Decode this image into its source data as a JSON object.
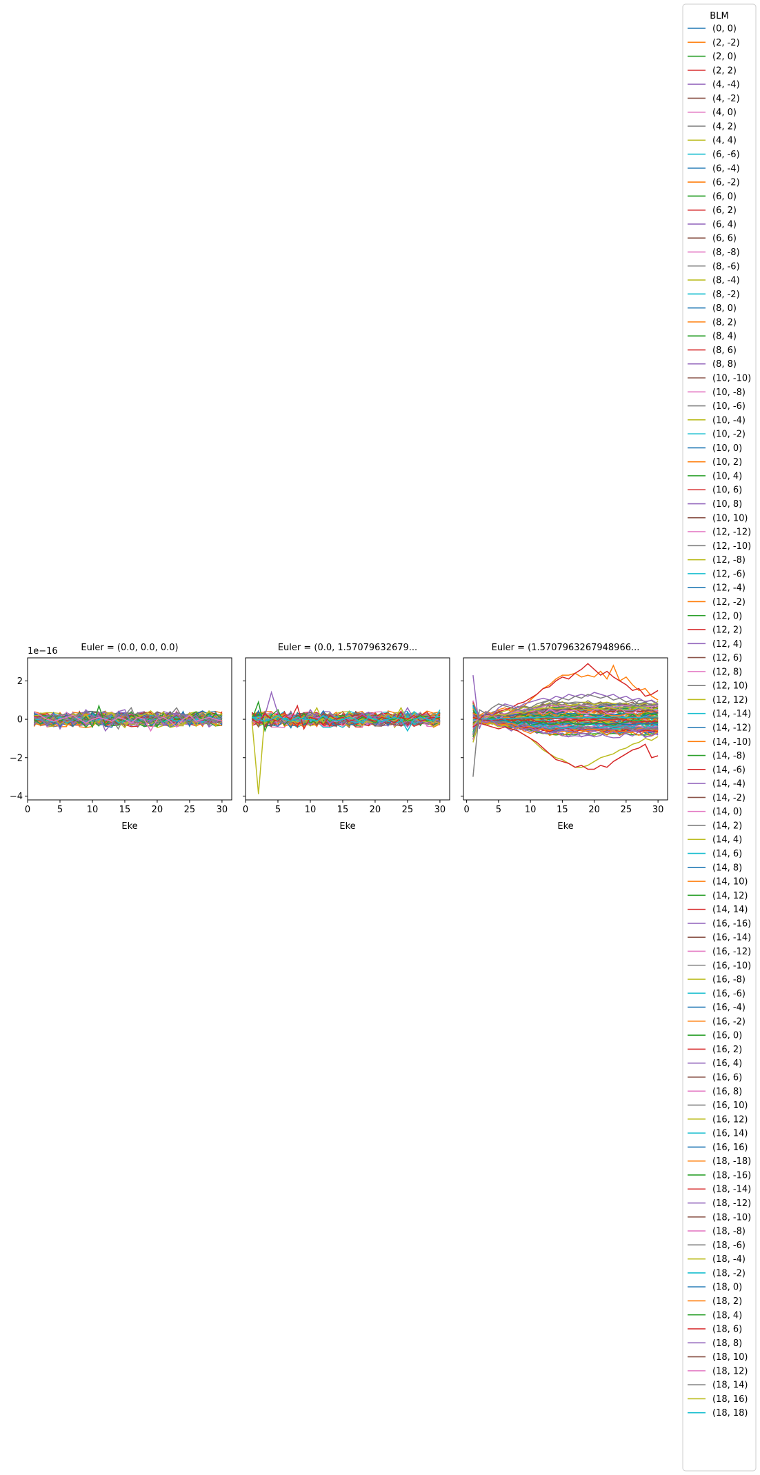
{
  "figure": {
    "legend_title": "BLM",
    "offset_text": "1e−16"
  },
  "colors": [
    "#1f77b4",
    "#ff7f0e",
    "#2ca02c",
    "#d62728",
    "#9467bd",
    "#8c564b",
    "#e377c2",
    "#7f7f7f",
    "#bcbd22",
    "#17becf"
  ],
  "legend": {
    "entries": [
      "(0, 0)",
      "(2, -2)",
      "(2, 0)",
      "(2, 2)",
      "(4, -4)",
      "(4, -2)",
      "(4, 0)",
      "(4, 2)",
      "(4, 4)",
      "(6, -6)",
      "(6, -4)",
      "(6, -2)",
      "(6, 0)",
      "(6, 2)",
      "(6, 4)",
      "(6, 6)",
      "(8, -8)",
      "(8, -6)",
      "(8, -4)",
      "(8, -2)",
      "(8, 0)",
      "(8, 2)",
      "(8, 4)",
      "(8, 6)",
      "(8, 8)",
      "(10, -10)",
      "(10, -8)",
      "(10, -6)",
      "(10, -4)",
      "(10, -2)",
      "(10, 0)",
      "(10, 2)",
      "(10, 4)",
      "(10, 6)",
      "(10, 8)",
      "(10, 10)",
      "(12, -12)",
      "(12, -10)",
      "(12, -8)",
      "(12, -6)",
      "(12, -4)",
      "(12, -2)",
      "(12, 0)",
      "(12, 2)",
      "(12, 4)",
      "(12, 6)",
      "(12, 8)",
      "(12, 10)",
      "(12, 12)",
      "(14, -14)",
      "(14, -12)",
      "(14, -10)",
      "(14, -8)",
      "(14, -6)",
      "(14, -4)",
      "(14, -2)",
      "(14, 0)",
      "(14, 2)",
      "(14, 4)",
      "(14, 6)",
      "(14, 8)",
      "(14, 10)",
      "(14, 12)",
      "(14, 14)",
      "(16, -16)",
      "(16, -14)",
      "(16, -12)",
      "(16, -10)",
      "(16, -8)",
      "(16, -6)",
      "(16, -4)",
      "(16, -2)",
      "(16, 0)",
      "(16, 2)",
      "(16, 4)",
      "(16, 6)",
      "(16, 8)",
      "(16, 10)",
      "(16, 12)",
      "(16, 14)",
      "(16, 16)",
      "(18, -18)",
      "(18, -16)",
      "(18, -14)",
      "(18, -12)",
      "(18, -10)",
      "(18, -8)",
      "(18, -6)",
      "(18, -4)",
      "(18, -2)",
      "(18, 0)",
      "(18, 2)",
      "(18, 4)",
      "(18, 6)",
      "(18, 8)",
      "(18, 10)",
      "(18, 12)",
      "(18, 14)",
      "(18, 16)",
      "(18, 18)"
    ]
  },
  "chart_data": [
    {
      "type": "line",
      "title": "Euler = (0.0, 0.0, 0.0)",
      "xlabel": "Eke",
      "ylabel": "",
      "xlim": [
        0,
        31.5
      ],
      "ylim": [
        -4.2,
        3.2
      ],
      "y_scale_label": "1e−16",
      "xticks": [
        0,
        5,
        10,
        15,
        20,
        25,
        30
      ],
      "yticks": [
        -4,
        -2,
        0,
        2
      ],
      "x": [
        1,
        2,
        3,
        4,
        5,
        6,
        7,
        8,
        9,
        10,
        11,
        12,
        13,
        14,
        15,
        16,
        17,
        18,
        19,
        20,
        21,
        22,
        23,
        24,
        25,
        26,
        27,
        28,
        29,
        30
      ],
      "highlights": [
        {
          "series": "(2, 0)",
          "values": [
            0.0,
            -0.25,
            0.05,
            0.2,
            -0.1,
            0.1,
            0.0,
            -0.2,
            0.15,
            -0.4,
            0.7,
            -0.3,
            0.1,
            0.0,
            -0.1,
            0.2,
            0.0,
            -0.2,
            0.1,
            0.0,
            -0.1,
            0.2,
            0.0,
            0.1,
            -0.2,
            0.2,
            0.0,
            -0.1,
            0.3,
            0.0
          ]
        },
        {
          "series": "(4, -4)",
          "values": [
            0.1,
            0.0,
            -0.3,
            0.2,
            -0.5,
            0.1,
            -0.2,
            0.0,
            0.5,
            0.1,
            0.2,
            -0.6,
            -0.2,
            0.4,
            0.5,
            -0.2,
            0.1,
            0.0,
            -0.1,
            0.2,
            -0.3,
            0.0,
            0.3,
            -0.1,
            0.0,
            0.2,
            -0.3,
            0.0,
            -0.2,
            0.1
          ]
        },
        {
          "series": "(12, -10)",
          "values": [
            0.0,
            0.1,
            -0.2,
            0.0,
            0.2,
            -0.1,
            0.0,
            0.3,
            -0.2,
            0.1,
            -0.3,
            0.2,
            0.0,
            -0.5,
            0.2,
            0.6,
            -0.2,
            0.0,
            0.1,
            -0.2,
            0.0,
            0.2,
            0.6,
            0.0,
            -0.2,
            0.1,
            0.3,
            -0.1,
            0.0,
            0.2
          ]
        },
        {
          "series": "(18, 12)",
          "values": [
            0.4,
            0.2,
            0.0,
            -0.1,
            0.0,
            0.1,
            0.2,
            0.0,
            -0.2,
            0.0,
            0.1,
            0.0,
            -0.1,
            0.1,
            0.0,
            -0.2,
            0.1,
            0.0,
            -0.6,
            0.0,
            0.1,
            -0.1,
            -0.4,
            0.0,
            0.2,
            -0.1,
            0.0,
            0.1,
            0.0,
            -0.1
          ]
        }
      ]
    },
    {
      "type": "line",
      "title": "Euler = (0.0, 1.57079632679...",
      "xlabel": "Eke",
      "ylabel": "",
      "xlim": [
        0,
        31.5
      ],
      "ylim": [
        -4.2,
        3.2
      ],
      "xticks": [
        0,
        5,
        10,
        15,
        20,
        25,
        30
      ],
      "yticks": [
        -4,
        -2,
        0,
        2
      ],
      "x": [
        1,
        2,
        3,
        4,
        5,
        6,
        7,
        8,
        9,
        10,
        11,
        12,
        13,
        14,
        15,
        16,
        17,
        18,
        19,
        20,
        21,
        22,
        23,
        24,
        25,
        26,
        27,
        28,
        29,
        30
      ],
      "highlights": [
        {
          "series": "(8, -4)",
          "values": [
            -0.1,
            -3.9,
            0.3,
            0.1,
            -0.1,
            0.2,
            0.0,
            0.1,
            -0.1,
            0.0,
            0.6,
            -0.2,
            0.1,
            0.0,
            0.0,
            0.2,
            -0.1,
            0.0,
            0.1,
            -0.1,
            0.0,
            0.3,
            0.0,
            0.6,
            -0.1,
            0.0,
            0.2,
            0.0,
            -0.2,
            0.1
          ]
        },
        {
          "series": "(2, 0)",
          "values": [
            0.0,
            0.9,
            -0.6,
            0.2,
            0.5,
            -0.3,
            0.1,
            0.0,
            0.3,
            -0.2,
            0.0,
            0.1,
            -0.1,
            0.0,
            0.2,
            0.0,
            -0.1,
            0.1,
            0.0,
            -0.2,
            0.1,
            0.0,
            0.0,
            0.1,
            -0.1,
            0.0,
            0.2,
            -0.1,
            0.0,
            0.1
          ]
        },
        {
          "series": "(4, -4)",
          "values": [
            0.1,
            0.0,
            0.2,
            1.4,
            0.3,
            -0.2,
            0.1,
            0.0,
            -0.1,
            0.5,
            0.0,
            0.2,
            -0.2,
            0.0,
            0.1,
            0.0,
            -0.1,
            0.3,
            0.0,
            0.1,
            -0.2,
            0.0,
            0.1,
            0.0,
            0.6,
            0.0,
            -0.2,
            0.1,
            0.0,
            -0.1
          ]
        },
        {
          "series": "(2, 2)",
          "values": [
            0.0,
            -0.2,
            0.3,
            0.0,
            -0.1,
            0.2,
            0.0,
            0.7,
            -0.5,
            0.1,
            0.0,
            -0.3,
            0.2,
            0.0,
            0.1,
            -0.1,
            0.0,
            0.2,
            0.0,
            -0.1,
            0.1,
            0.0,
            -0.2,
            0.1,
            0.0,
            0.2,
            -0.1,
            0.0,
            0.1,
            0.0
          ]
        },
        {
          "series": "(10, -2)",
          "values": [
            0.1,
            0.0,
            -0.1,
            0.0,
            0.2,
            0.0,
            -0.1,
            0.1,
            0.0,
            0.0,
            -0.1,
            0.2,
            0.0,
            -0.1,
            0.0,
            0.1,
            0.0,
            -0.2,
            0.1,
            0.0,
            -0.1,
            0.0,
            0.1,
            0.0,
            -0.6,
            0.0,
            0.1,
            0.0,
            -0.1,
            0.5
          ]
        }
      ]
    },
    {
      "type": "line",
      "title": "Euler = (1.5707963267948966...",
      "xlabel": "Eke",
      "ylabel": "",
      "xlim": [
        -0.5,
        31.5
      ],
      "ylim": [
        -4.2,
        3.2
      ],
      "xticks": [
        0,
        5,
        10,
        15,
        20,
        25,
        30
      ],
      "yticks": [
        -4,
        -2,
        0,
        2
      ],
      "x": [
        1,
        2,
        3,
        4,
        5,
        6,
        7,
        8,
        9,
        10,
        11,
        12,
        13,
        14,
        15,
        16,
        17,
        18,
        19,
        20,
        21,
        22,
        23,
        24,
        25,
        26,
        27,
        28,
        29,
        30
      ],
      "highlights": [
        {
          "series": "(2, -2)",
          "values": [
            0.3,
            0.2,
            0.4,
            0.3,
            0.5,
            0.6,
            0.4,
            0.6,
            0.7,
            1.0,
            1.3,
            1.6,
            1.8,
            2.1,
            2.3,
            2.3,
            2.4,
            2.2,
            2.3,
            2.2,
            2.5,
            2.1,
            2.8,
            2.0,
            2.2,
            1.8,
            1.5,
            1.6,
            1.2,
            1.0
          ]
        },
        {
          "series": "(2, 2)",
          "values": [
            0.1,
            0.0,
            0.3,
            0.2,
            0.4,
            0.5,
            0.6,
            0.8,
            0.9,
            1.1,
            1.3,
            1.6,
            1.7,
            2.0,
            2.2,
            2.1,
            2.4,
            2.6,
            2.9,
            2.6,
            2.3,
            2.5,
            2.2,
            2.0,
            1.8,
            1.5,
            1.6,
            1.2,
            1.3,
            1.5
          ]
        },
        {
          "series": "(4, 4)",
          "values": [
            -1.2,
            -0.1,
            -0.3,
            -0.2,
            -0.4,
            -0.3,
            -0.5,
            -0.6,
            -0.8,
            -1.0,
            -1.3,
            -1.6,
            -1.8,
            -2.0,
            -2.1,
            -2.3,
            -2.5,
            -2.5,
            -2.4,
            -2.2,
            -2.0,
            -1.9,
            -1.8,
            -1.6,
            -1.5,
            -1.3,
            -1.2,
            -1.0,
            -1.1,
            -0.9
          ]
        },
        {
          "series": "(6, 2)",
          "values": [
            -0.4,
            -0.2,
            -0.3,
            -0.4,
            -0.5,
            -0.4,
            -0.5,
            -0.6,
            -0.8,
            -1.0,
            -1.2,
            -1.5,
            -1.8,
            -2.1,
            -2.2,
            -2.3,
            -2.5,
            -2.4,
            -2.6,
            -2.6,
            -2.4,
            -2.5,
            -2.2,
            -2.0,
            -1.8,
            -1.6,
            -1.5,
            -1.3,
            -2.0,
            -1.9
          ]
        },
        {
          "series": "(6, 4)",
          "values": [
            2.3,
            -0.5,
            0.4,
            0.2,
            0.6,
            0.8,
            0.7,
            0.6,
            0.8,
            0.9,
            1.0,
            1.1,
            1.0,
            1.2,
            1.1,
            1.3,
            1.2,
            1.3,
            1.2,
            1.4,
            1.3,
            1.2,
            1.3,
            1.1,
            1.2,
            1.0,
            1.1,
            0.9,
            1.0,
            0.8
          ]
        },
        {
          "series": "(4, 2)",
          "values": [
            -3.0,
            0.5,
            0.3,
            0.6,
            0.8,
            0.7,
            0.6,
            0.5,
            0.7,
            0.6,
            0.8,
            0.9,
            1.0,
            0.9,
            1.1,
            1.0,
            1.2,
            1.1,
            1.3,
            1.2,
            1.1,
            1.2,
            1.0,
            1.1,
            0.9,
            1.0,
            0.8,
            0.9,
            0.7,
            0.8
          ]
        }
      ]
    }
  ]
}
